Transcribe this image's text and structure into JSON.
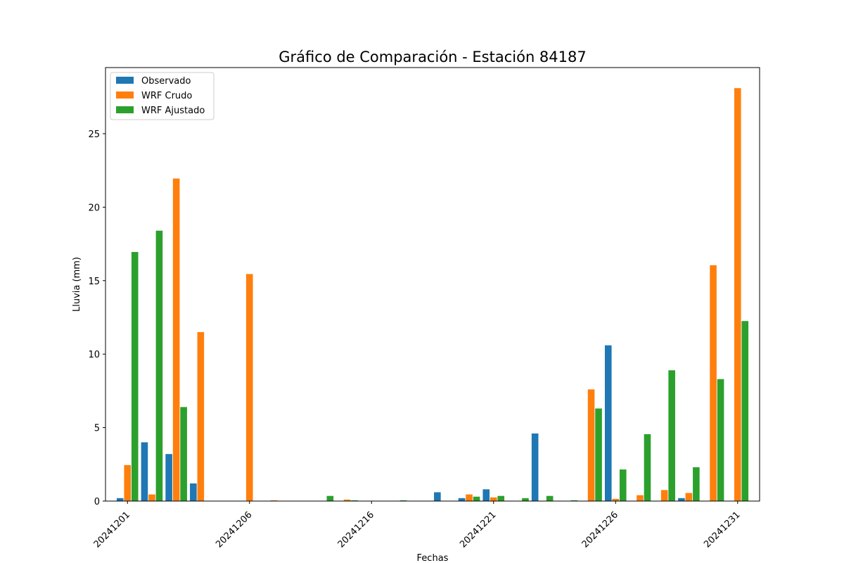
{
  "chart_data": {
    "type": "bar",
    "title": "Gráfico de Comparación - Estación 84187",
    "xlabel": "Fechas",
    "ylabel": "Lluvia (mm)",
    "ylim": [
      0,
      29.5
    ],
    "yticks": [
      0,
      5,
      10,
      15,
      20,
      25
    ],
    "xtick_labels": [
      "20241201",
      "20241206",
      "20241216",
      "20241221",
      "20241226",
      "20241231"
    ],
    "legend_position": "upper-left",
    "grid": false,
    "series": [
      {
        "name": "Observado",
        "color": "#1f77b4",
        "points": [
          {
            "x": 0.0,
            "y": 0.2
          },
          {
            "x": 1.0,
            "y": 4.0
          },
          {
            "x": 2.0,
            "y": 3.2
          },
          {
            "x": 3.0,
            "y": 1.2
          },
          {
            "x": 13.0,
            "y": 0.6
          },
          {
            "x": 14.0,
            "y": 0.2
          },
          {
            "x": 15.0,
            "y": 0.8
          },
          {
            "x": 17.0,
            "y": 4.6
          },
          {
            "x": 20.0,
            "y": 10.6
          },
          {
            "x": 23.0,
            "y": 0.2
          }
        ]
      },
      {
        "name": "WRF Crudo",
        "color": "#ff7f0e",
        "points": [
          {
            "x": 0.0,
            "y": 2.45
          },
          {
            "x": 1.0,
            "y": 0.45
          },
          {
            "x": 2.0,
            "y": 21.95
          },
          {
            "x": 3.0,
            "y": 11.5
          },
          {
            "x": 5.0,
            "y": 15.45
          },
          {
            "x": 6.0,
            "y": 0.05
          },
          {
            "x": 9.0,
            "y": 0.1
          },
          {
            "x": 14.0,
            "y": 0.45
          },
          {
            "x": 15.0,
            "y": 0.25
          },
          {
            "x": 19.0,
            "y": 7.6
          },
          {
            "x": 20.0,
            "y": 0.15
          },
          {
            "x": 21.0,
            "y": 0.4
          },
          {
            "x": 22.0,
            "y": 0.75
          },
          {
            "x": 23.0,
            "y": 0.55
          },
          {
            "x": 24.0,
            "y": 16.05
          },
          {
            "x": 25.0,
            "y": 28.1
          }
        ]
      },
      {
        "name": "WRF Ajustado",
        "color": "#2ca02c",
        "points": [
          {
            "x": 0.0,
            "y": 16.95
          },
          {
            "x": 1.0,
            "y": 18.4
          },
          {
            "x": 2.0,
            "y": 6.4
          },
          {
            "x": 8.0,
            "y": 0.35
          },
          {
            "x": 9.0,
            "y": 0.05
          },
          {
            "x": 11.0,
            "y": 0.05
          },
          {
            "x": 14.0,
            "y": 0.3
          },
          {
            "x": 15.0,
            "y": 0.35
          },
          {
            "x": 16.0,
            "y": 0.2
          },
          {
            "x": 17.0,
            "y": 0.35
          },
          {
            "x": 18.0,
            "y": 0.05
          },
          {
            "x": 19.0,
            "y": 6.3
          },
          {
            "x": 20.0,
            "y": 2.15
          },
          {
            "x": 21.0,
            "y": 4.55
          },
          {
            "x": 22.0,
            "y": 8.9
          },
          {
            "x": 23.0,
            "y": 2.3
          },
          {
            "x": 24.0,
            "y": 8.3
          },
          {
            "x": 25.0,
            "y": 12.25
          }
        ]
      }
    ]
  }
}
